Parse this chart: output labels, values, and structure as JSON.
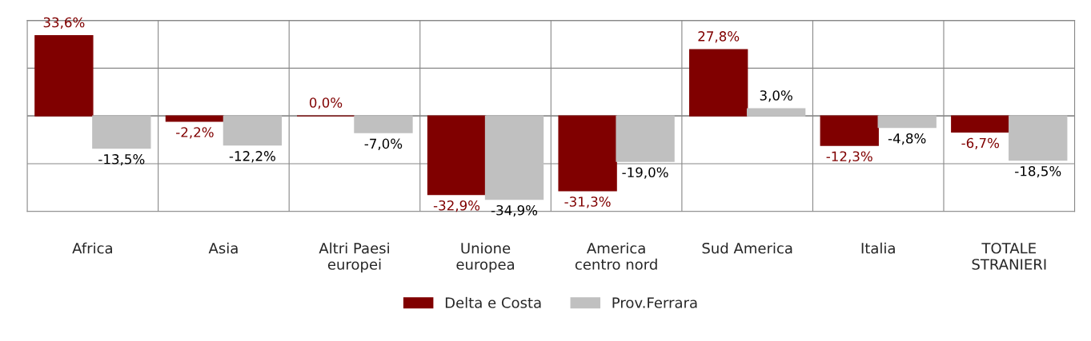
{
  "chart_data": {
    "type": "bar",
    "categories": [
      "Africa",
      "Asia",
      "Altri Paesi\neuropei",
      "Unione\neuropea",
      "America\ncentro nord",
      "Sud America",
      "Italia",
      "TOTALE\nSTRANIERI"
    ],
    "series": [
      {
        "name": "Delta e Costa",
        "color": "#800000",
        "values": [
          33.6,
          -2.2,
          0.0,
          -32.9,
          -31.3,
          27.8,
          -12.3,
          -6.7
        ],
        "value_labels": [
          "33,6%",
          "-2,2%",
          "0,0%",
          "-32,9%",
          "-31,3%",
          "27,8%",
          "-12,3%",
          "-6,7%"
        ]
      },
      {
        "name": "Prov.Ferrara",
        "color": "#c0c0c0",
        "values": [
          -13.5,
          -12.2,
          -7.0,
          -34.9,
          -19.0,
          3.0,
          -4.8,
          -18.5
        ],
        "value_labels": [
          "-13,5%",
          "-12,2%",
          "-7,0%",
          "-34,9%",
          "-19,0%",
          "3,0%",
          "-4,8%",
          "-18,5%"
        ]
      }
    ],
    "ylim": [
      -40,
      40
    ],
    "yticks": [
      {
        "value": -40,
        "label": null
      },
      {
        "value": -20,
        "label": null
      },
      {
        "value": 0,
        "label": null
      },
      {
        "value": 20,
        "label": null
      },
      {
        "value": 40,
        "label": null
      }
    ],
    "tick_labels": "x",
    "grid": true,
    "legend": "bottom"
  }
}
